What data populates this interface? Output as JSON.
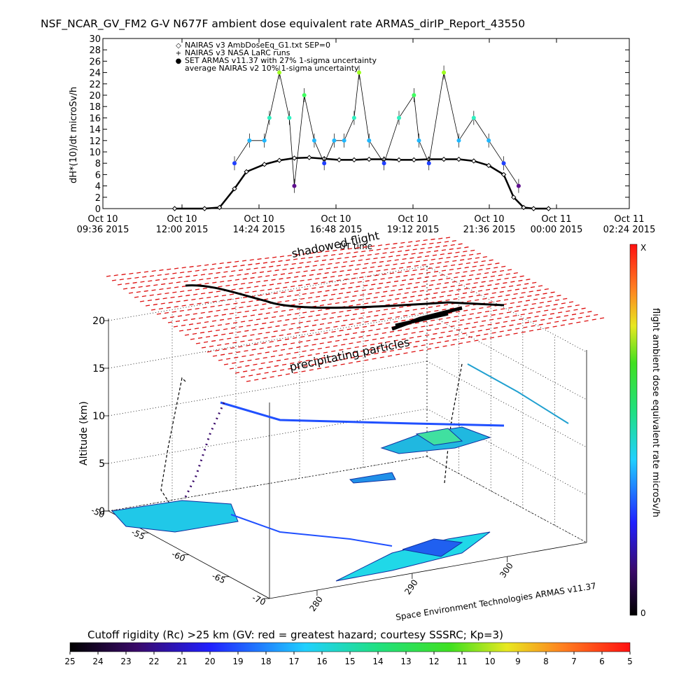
{
  "title": "NSF_NCAR_GV_FM2 G-V     N677F  ambient dose equivalent rate ARMAS_dirIP_Report_43550",
  "timeseries": {
    "ylabel": "dH*(10)/dt microSv/h",
    "xlabel": "UT time",
    "yticks": [
      "0",
      "2",
      "4",
      "6",
      "8",
      "10",
      "12",
      "14",
      "16",
      "18",
      "20",
      "22",
      "24",
      "26",
      "28",
      "30"
    ],
    "xticks": [
      {
        "day": "Oct 10",
        "time": "09:36 2015"
      },
      {
        "day": "Oct 10",
        "time": "12:00 2015"
      },
      {
        "day": "Oct 10",
        "time": "14:24 2015"
      },
      {
        "day": "Oct 10",
        "time": "16:48 2015"
      },
      {
        "day": "Oct 10",
        "time": "19:12 2015"
      },
      {
        "day": "Oct 10",
        "time": "21:36 2015"
      },
      {
        "day": "Oct 11",
        "time": "00:00 2015"
      },
      {
        "day": "Oct 11",
        "time": "02:24 2015"
      }
    ],
    "legend": [
      {
        "symbol": "◇",
        "text": "NAIRAS v3 AmbDoseEq_G1.txt SEP=0",
        "color": "#000000"
      },
      {
        "symbol": "+",
        "text": "NAIRAS v3 NASA LaRC runs",
        "color": "#000000"
      },
      {
        "symbol": "●",
        "text": "SET ARMAS v11.37 with 27% 1-sigma uncertainty",
        "color": "#2040ff"
      },
      {
        "symbol": "",
        "text": "average NAIRAS v2 10% 1-sigma uncertainty",
        "color": "#000000"
      }
    ]
  },
  "globe": {
    "zlabel": "Altitude (km)",
    "zticks": [
      "0",
      "5",
      "10",
      "15",
      "20"
    ],
    "lat_ticks": [
      "-50",
      "-55",
      "-60",
      "-65",
      "-70"
    ],
    "lon_ticks": [
      "280",
      "290",
      "300"
    ],
    "label_shadowed": "shadowed flight",
    "label_precip": "precipitating particles",
    "credit": "Space Environment Technologies ARMAS v11.37"
  },
  "colorbar_v": {
    "label": "flight ambient dose equivalent rate microSv/h",
    "top": "X",
    "bottom": "0"
  },
  "colorbar_h": {
    "title": "Cutoff rigidity (Rc) >25 km (GV: red = greatest hazard; courtesy SSSRC; Kp=3)",
    "ticks": [
      "25",
      "24",
      "23",
      "22",
      "21",
      "20",
      "19",
      "18",
      "17",
      "16",
      "15",
      "14",
      "13",
      "12",
      "11",
      "10",
      "9",
      "8",
      "7",
      "6",
      "5"
    ]
  },
  "chart_data": {
    "type": "scatter",
    "title": "NSF_NCAR_GV_FM2 G-V     N677F  ambient dose equivalent rate ARMAS_dirIP_Report_43550",
    "xlabel": "UT time",
    "ylabel": "dH*(10)/dt microSv/h",
    "xlim": [
      "2015-10-10 09:36",
      "2015-10-11 03:12"
    ],
    "ylim": [
      0,
      30
    ],
    "series": [
      {
        "name": "NAIRAS v3 AmbDoseEq_G1.txt SEP=0",
        "marker": "diamond",
        "x": [
          "2015-10-10 12:00",
          "2015-10-10 13:00",
          "2015-10-10 13:30",
          "2015-10-10 14:00",
          "2015-10-10 14:24",
          "2015-10-10 15:00",
          "2015-10-10 15:30",
          "2015-10-10 16:00",
          "2015-10-10 16:30",
          "2015-10-10 17:00",
          "2015-10-10 17:30",
          "2015-10-10 18:00",
          "2015-10-10 18:30",
          "2015-10-10 19:00",
          "2015-10-10 19:30",
          "2015-10-10 20:00",
          "2015-10-10 20:30",
          "2015-10-10 21:00",
          "2015-10-10 21:30",
          "2015-10-10 22:00",
          "2015-10-10 22:30",
          "2015-10-10 23:00",
          "2015-10-10 23:20",
          "2015-10-10 23:40",
          "2015-10-11 00:00",
          "2015-10-11 00:30"
        ],
        "y": [
          0,
          0,
          0.2,
          3.5,
          6.5,
          7.8,
          8.5,
          8.9,
          9.0,
          8.8,
          8.6,
          8.6,
          8.7,
          8.7,
          8.6,
          8.6,
          8.7,
          8.7,
          8.7,
          8.4,
          7.6,
          6.0,
          2.0,
          0.2,
          0,
          0
        ]
      },
      {
        "name": "SET ARMAS v11.37 with 27% 1-sigma uncertainty",
        "marker": "dot",
        "x": [
          "2015-10-10 14:00",
          "2015-10-10 14:30",
          "2015-10-10 15:00",
          "2015-10-10 15:10",
          "2015-10-10 15:30",
          "2015-10-10 15:50",
          "2015-10-10 16:00",
          "2015-10-10 16:20",
          "2015-10-10 16:40",
          "2015-10-10 17:00",
          "2015-10-10 17:20",
          "2015-10-10 17:40",
          "2015-10-10 18:00",
          "2015-10-10 18:10",
          "2015-10-10 18:30",
          "2015-10-10 19:00",
          "2015-10-10 19:30",
          "2015-10-10 20:00",
          "2015-10-10 20:10",
          "2015-10-10 20:30",
          "2015-10-10 21:00",
          "2015-10-10 21:30",
          "2015-10-10 22:00",
          "2015-10-10 22:30",
          "2015-10-10 23:00",
          "2015-10-10 23:30"
        ],
        "y": [
          8,
          12,
          12,
          16,
          24,
          16,
          4,
          20,
          12,
          8,
          12,
          12,
          16,
          24,
          12,
          8,
          16,
          20,
          12,
          8,
          24,
          12,
          16,
          12,
          8,
          4
        ]
      }
    ]
  }
}
